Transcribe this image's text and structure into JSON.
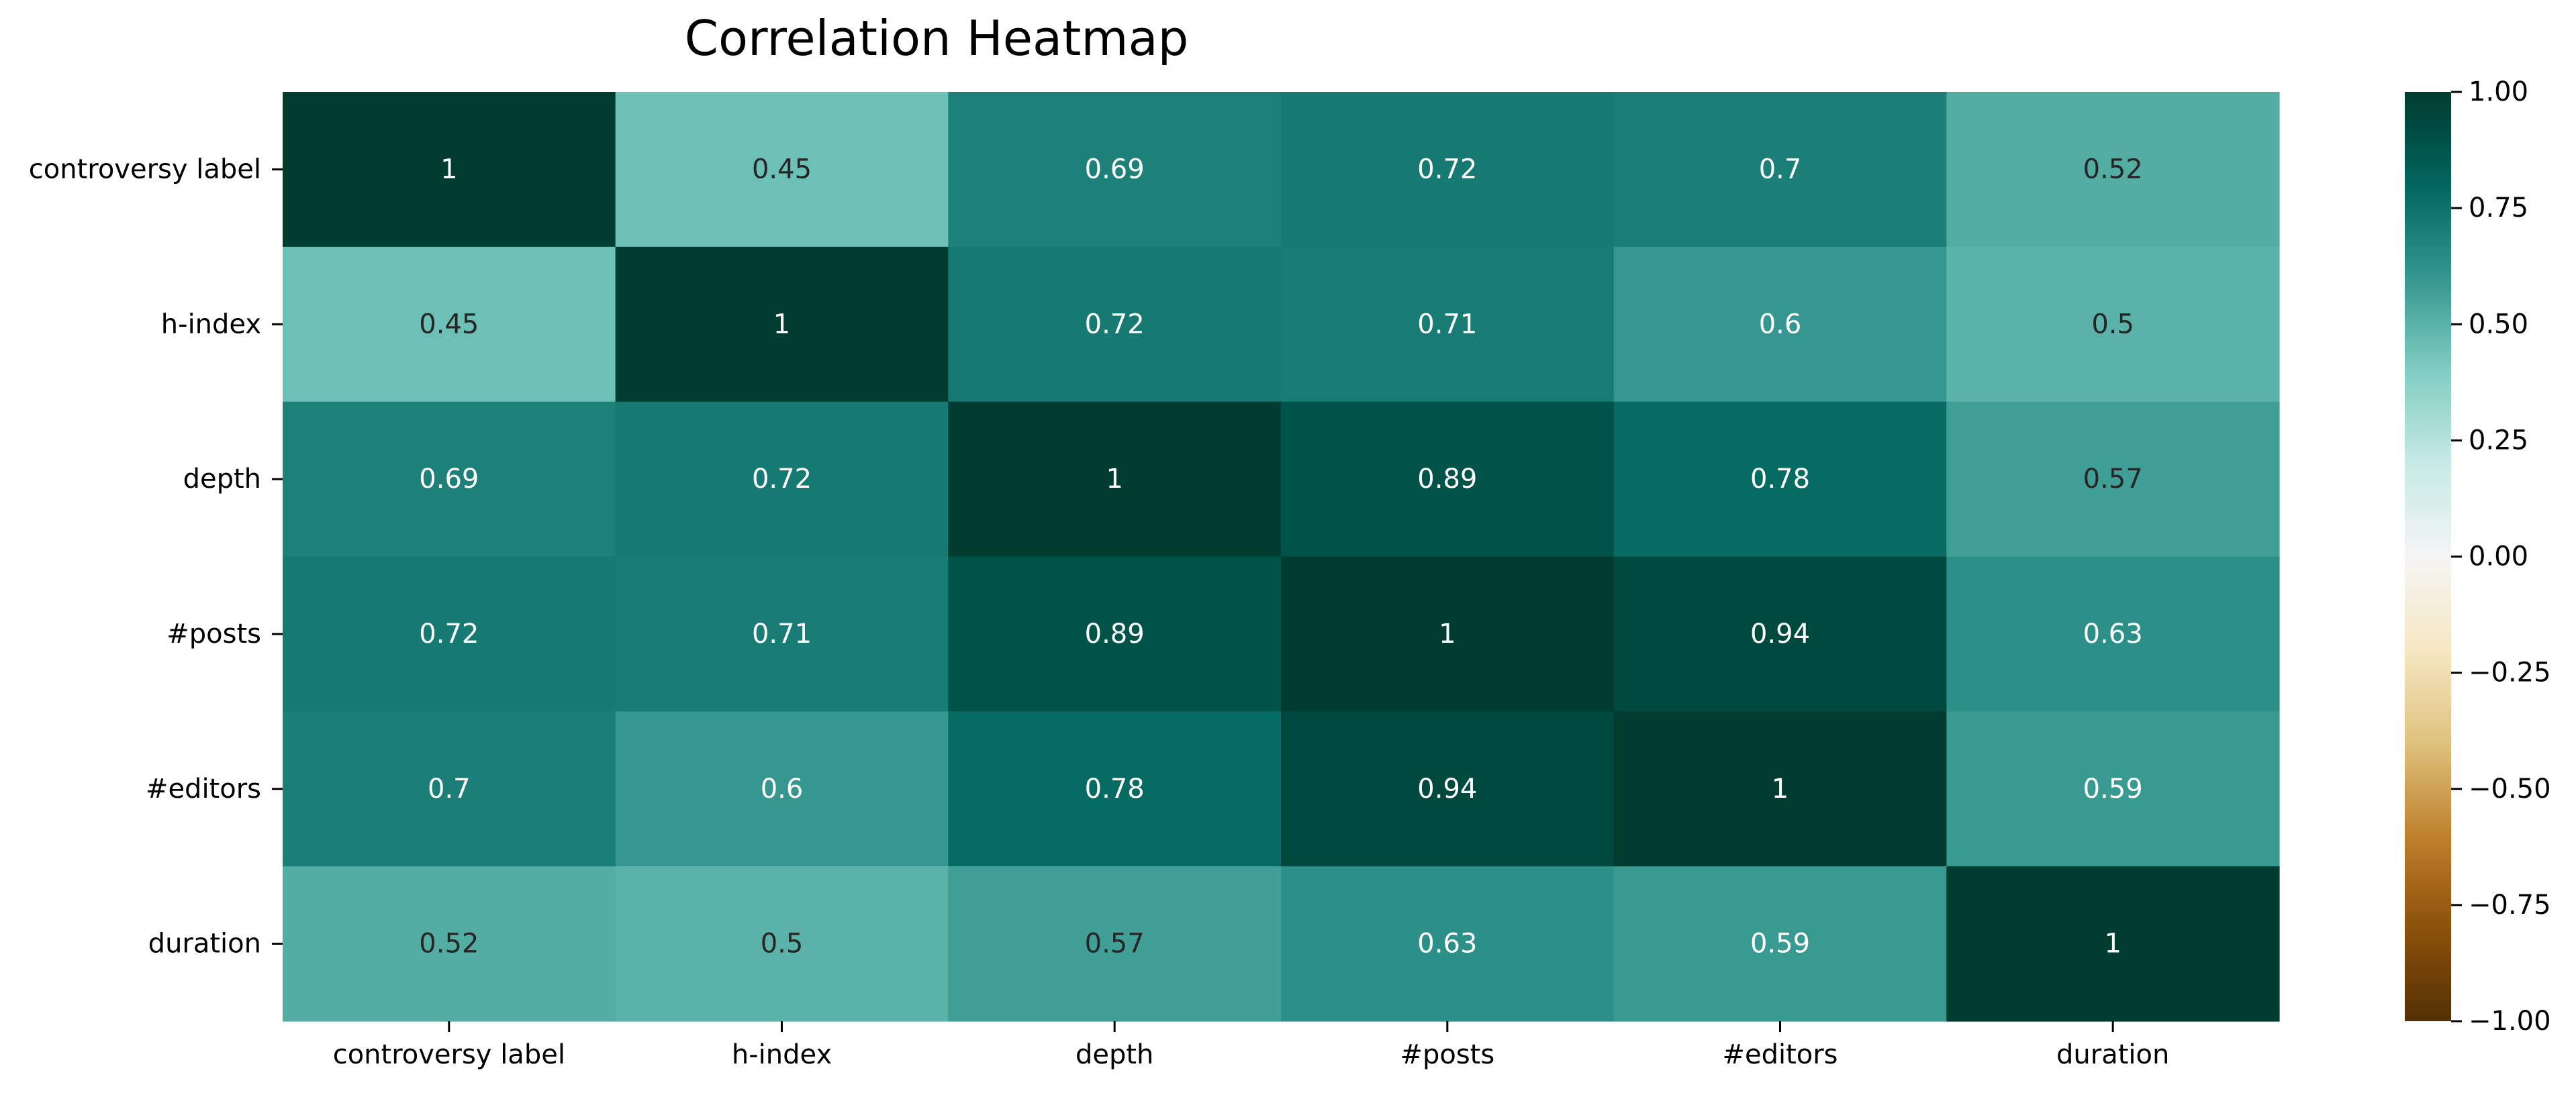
{
  "chart_data": {
    "type": "heatmap",
    "title": "Correlation Heatmap",
    "xlabel": "",
    "ylabel": "",
    "x_categories": [
      "controversy label",
      "h-index",
      "depth",
      "#posts",
      "#editors",
      "duration"
    ],
    "y_categories": [
      "controversy label",
      "h-index",
      "depth",
      "#posts",
      "#editors",
      "duration"
    ],
    "values": [
      [
        1,
        0.45,
        0.69,
        0.72,
        0.7,
        0.52
      ],
      [
        0.45,
        1,
        0.72,
        0.71,
        0.6,
        0.5
      ],
      [
        0.69,
        0.72,
        1,
        0.89,
        0.78,
        0.57
      ],
      [
        0.72,
        0.71,
        0.89,
        1,
        0.94,
        0.63
      ],
      [
        0.7,
        0.6,
        0.78,
        0.94,
        1,
        0.59
      ],
      [
        0.52,
        0.5,
        0.57,
        0.63,
        0.59,
        1
      ]
    ],
    "cell_labels": [
      [
        "1",
        "0.45",
        "0.69",
        "0.72",
        "0.7",
        "0.52"
      ],
      [
        "0.45",
        "1",
        "0.72",
        "0.71",
        "0.6",
        "0.5"
      ],
      [
        "0.69",
        "0.72",
        "1",
        "0.89",
        "0.78",
        "0.57"
      ],
      [
        "0.72",
        "0.71",
        "0.89",
        "1",
        "0.94",
        "0.63"
      ],
      [
        "0.7",
        "0.6",
        "0.78",
        "0.94",
        "1",
        "0.59"
      ],
      [
        "0.52",
        "0.5",
        "0.57",
        "0.63",
        "0.59",
        "1"
      ]
    ],
    "colorscale": {
      "name": "BrBG",
      "vmin": -1,
      "vmax": 1,
      "stops": [
        {
          "v": -1.0,
          "color": "#543005"
        },
        {
          "v": -0.8,
          "color": "#8c510a"
        },
        {
          "v": -0.6,
          "color": "#bf812d"
        },
        {
          "v": -0.4,
          "color": "#dfc27d"
        },
        {
          "v": -0.2,
          "color": "#f6e8c3"
        },
        {
          "v": 0.0,
          "color": "#f5f5f5"
        },
        {
          "v": 0.2,
          "color": "#c7eae5"
        },
        {
          "v": 0.4,
          "color": "#80cdc1"
        },
        {
          "v": 0.6,
          "color": "#35978f"
        },
        {
          "v": 0.8,
          "color": "#01665e"
        },
        {
          "v": 1.0,
          "color": "#003c30"
        }
      ]
    },
    "colorbar_ticks": [
      {
        "value": 1.0,
        "label": "1.00"
      },
      {
        "value": 0.75,
        "label": "0.75"
      },
      {
        "value": 0.5,
        "label": "0.50"
      },
      {
        "value": 0.25,
        "label": "0.25"
      },
      {
        "value": 0.0,
        "label": "0.00"
      },
      {
        "value": -0.25,
        "label": "−0.25"
      },
      {
        "value": -0.5,
        "label": "−0.50"
      },
      {
        "value": -0.75,
        "label": "−0.75"
      },
      {
        "value": -1.0,
        "label": "−1.00"
      }
    ],
    "annotation_color_dark_bg": "#ffffff",
    "annotation_color_light_bg": "#262626"
  }
}
